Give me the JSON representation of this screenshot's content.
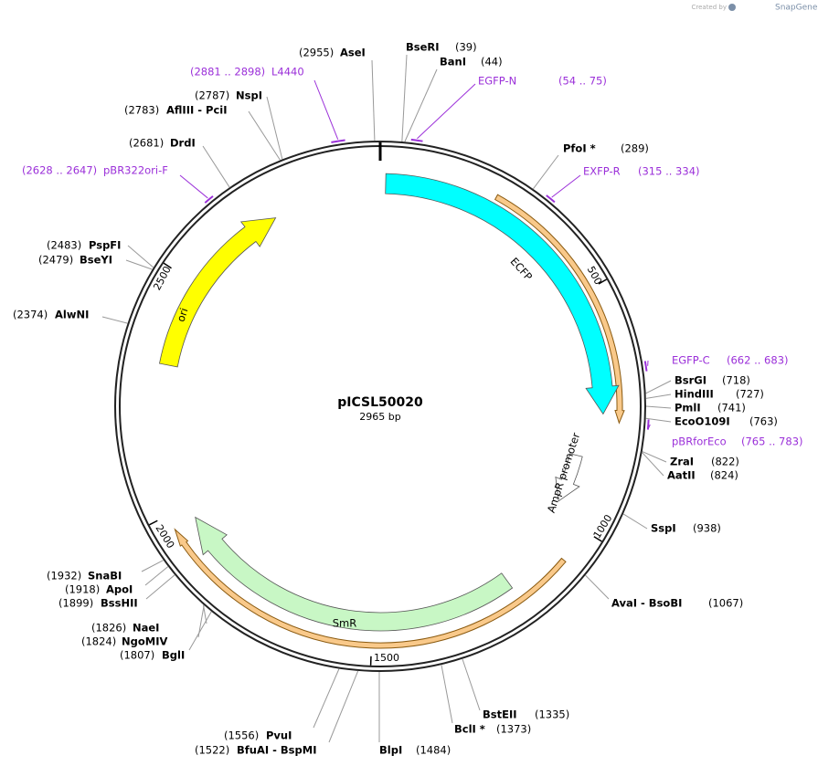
{
  "header": {
    "watermark_prefix": "Created by",
    "watermark_brand": "SnapGene"
  },
  "plasmid": {
    "name": "pICSL50020",
    "size": "2965 bp"
  },
  "features": [
    {
      "label": "ECFP"
    },
    {
      "label": "AmpR promoter"
    },
    {
      "label": "SmR"
    },
    {
      "label": "ori"
    }
  ],
  "scale_labels": [
    "500",
    "1000",
    "1500",
    "2000",
    "2500"
  ],
  "enzymes": [
    {
      "name": "AseI",
      "position": "(2955)"
    },
    {
      "name": "BseRI",
      "position": "(39)"
    },
    {
      "name": "BanI",
      "position": "(44)"
    },
    {
      "name": "PfoI *",
      "position": "(289)"
    },
    {
      "name": "BsrGI",
      "position": "(718)"
    },
    {
      "name": "HindIII",
      "position": "(727)"
    },
    {
      "name": "PmlI",
      "position": "(741)"
    },
    {
      "name": "EcoO109I",
      "position": "(763)"
    },
    {
      "name": "ZraI",
      "position": "(822)"
    },
    {
      "name": "AatII",
      "position": "(824)"
    },
    {
      "name": "SspI",
      "position": "(938)"
    },
    {
      "name": "AvaI - BsoBI",
      "position": "(1067)"
    },
    {
      "name": "BstEII",
      "position": "(1335)"
    },
    {
      "name": "BclI *",
      "position": "(1373)"
    },
    {
      "name": "BlpI",
      "position": "(1484)"
    },
    {
      "name": "PvuI",
      "position": "(1556)"
    },
    {
      "name": "BfuAI - BspMI",
      "position": "(1522)"
    },
    {
      "name": "BglI",
      "position": "(1807)"
    },
    {
      "name": "NgoMIV",
      "position": "(1824)"
    },
    {
      "name": "NaeI",
      "position": "(1826)"
    },
    {
      "name": "BssHII",
      "position": "(1899)"
    },
    {
      "name": "ApoI",
      "position": "(1918)"
    },
    {
      "name": "SnaBI",
      "position": "(1932)"
    },
    {
      "name": "AlwNI",
      "position": "(2374)"
    },
    {
      "name": "BseYI",
      "position": "(2479)"
    },
    {
      "name": "PspFI",
      "position": "(2483)"
    },
    {
      "name": "DrdI",
      "position": "(2681)"
    },
    {
      "name": "AflIII - PciI",
      "position": "(2783)"
    },
    {
      "name": "NspI",
      "position": "(2787)"
    }
  ],
  "primers": [
    {
      "name": "L4440",
      "range": "(2881 .. 2898)"
    },
    {
      "name": "EGFP-N",
      "range": "(54 .. 75)"
    },
    {
      "name": "EXFP-R",
      "range": "(315 .. 334)"
    },
    {
      "name": "EGFP-C",
      "range": "(662 .. 683)"
    },
    {
      "name": "pBRforEco",
      "range": "(765 .. 783)"
    },
    {
      "name": "pBR322ori-F",
      "range": "(2628 .. 2647)"
    }
  ]
}
